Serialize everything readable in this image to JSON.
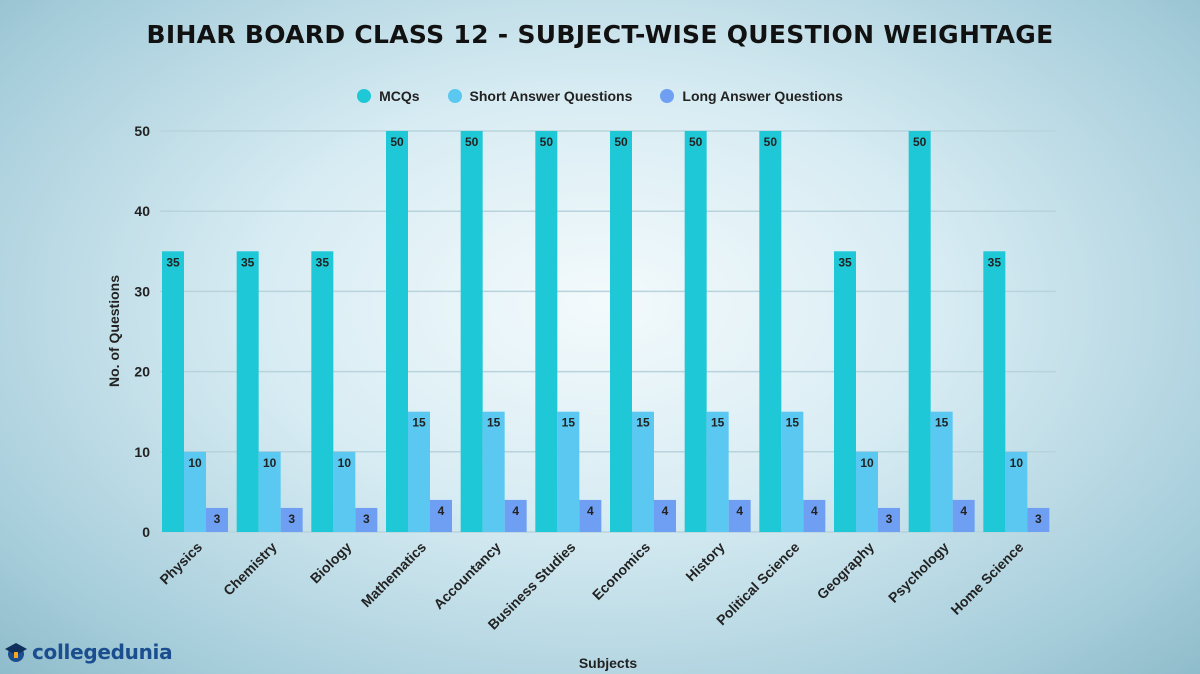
{
  "brand": {
    "name": "collegedunia"
  },
  "chart_data": {
    "type": "bar",
    "title": "BIHAR BOARD CLASS 12 - SUBJECT-WISE QUESTION WEIGHTAGE",
    "xlabel": "Subjects",
    "ylabel": "No. of Questions",
    "ylim": [
      0,
      50
    ],
    "yticks": [
      0,
      10,
      20,
      30,
      40,
      50
    ],
    "grid": true,
    "legend_position": "top-center",
    "categories": [
      "Physics",
      "Chemistry",
      "Biology",
      "Mathematics",
      "Accountancy",
      "Business Studies",
      "Economics",
      "History",
      "Political Science",
      "Geography",
      "Psychology",
      "Home Science"
    ],
    "series": [
      {
        "name": "MCQs",
        "color": "#1ec8d6",
        "values": [
          35,
          35,
          35,
          50,
          50,
          50,
          50,
          50,
          50,
          35,
          50,
          35
        ]
      },
      {
        "name": "Short Answer Questions",
        "color": "#5ac8f0",
        "values": [
          10,
          10,
          10,
          15,
          15,
          15,
          15,
          15,
          15,
          10,
          15,
          10
        ]
      },
      {
        "name": "Long Answer Questions",
        "color": "#6f9ff2",
        "values": [
          3,
          3,
          3,
          4,
          4,
          4,
          4,
          4,
          4,
          3,
          4,
          3
        ]
      }
    ]
  }
}
